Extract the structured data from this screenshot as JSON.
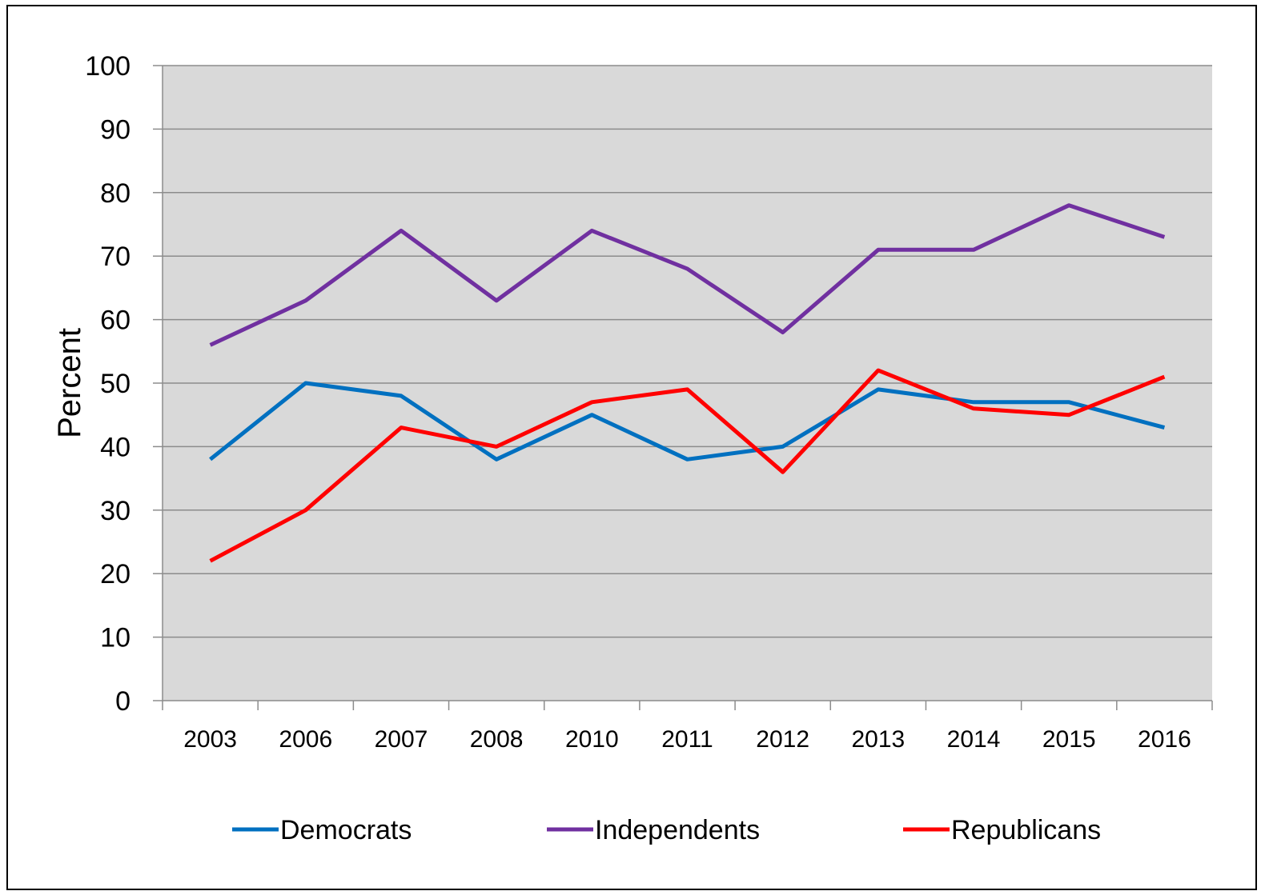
{
  "chart_data": {
    "type": "line",
    "title": "",
    "xlabel": "",
    "ylabel": "Percent",
    "categories": [
      "2003",
      "2006",
      "2007",
      "2008",
      "2010",
      "2011",
      "2012",
      "2013",
      "2014",
      "2015",
      "2016"
    ],
    "ylim": [
      0,
      100
    ],
    "yticks": [
      0,
      10,
      20,
      30,
      40,
      50,
      60,
      70,
      80,
      90,
      100
    ],
    "grid": true,
    "plot_background": "#d9d9d9",
    "legend_position": "bottom",
    "series": [
      {
        "name": "Democrats",
        "color": "#0070c0",
        "values": [
          38,
          50,
          48,
          38,
          45,
          38,
          40,
          49,
          47,
          47,
          43
        ]
      },
      {
        "name": "Independents",
        "color": "#7030a0",
        "values": [
          56,
          63,
          74,
          63,
          74,
          68,
          58,
          71,
          71,
          78,
          73
        ]
      },
      {
        "name": "Republicans",
        "color": "#ff0000",
        "values": [
          22,
          30,
          43,
          40,
          47,
          49,
          36,
          52,
          46,
          45,
          51
        ]
      }
    ]
  }
}
